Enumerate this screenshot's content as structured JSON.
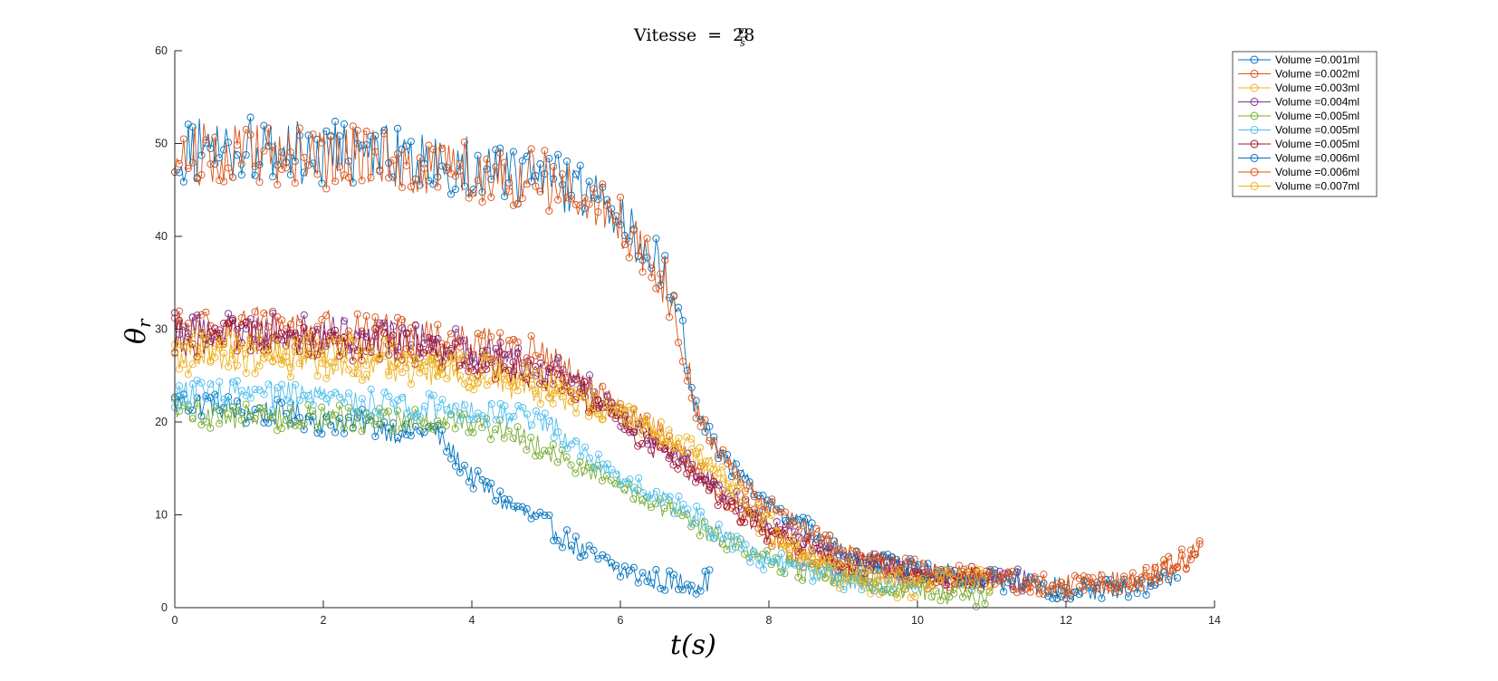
{
  "chart_data": {
    "type": "line",
    "marker": "circle",
    "title": "Vitesse = 28 m/s",
    "title_parts": {
      "lhs": "Vitesse",
      "equals": "=",
      "number": "28",
      "unit_num": "m",
      "unit_den": "s"
    },
    "xlabel": "t(s)",
    "ylabel": "θr",
    "ylabel_parts": {
      "symbol": "θ",
      "subscript": "r"
    },
    "xlim": [
      0,
      14
    ],
    "ylim": [
      0,
      60
    ],
    "xticks": [
      0,
      2,
      4,
      6,
      8,
      10,
      12,
      14
    ],
    "yticks": [
      0,
      10,
      20,
      30,
      40,
      50,
      60
    ],
    "grid": false,
    "legend_position": "top-right",
    "series": [
      {
        "name": "Volume =0.001ml",
        "color": "#0072BD",
        "x": [
          0,
          0.5,
          1,
          1.5,
          2,
          2.5,
          3,
          3.5,
          4,
          4.5,
          5,
          5.5,
          6,
          6.5,
          7,
          7.2
        ],
        "y": [
          22,
          22,
          21,
          21,
          20,
          20,
          19,
          19,
          14,
          11,
          9,
          6,
          4,
          3,
          2.5,
          3
        ]
      },
      {
        "name": "Volume =0.002ml",
        "color": "#D95319",
        "x": [
          0,
          1,
          2,
          3,
          4,
          5,
          5.5,
          6,
          6.5,
          6.8,
          7,
          7.5,
          8,
          8.5,
          9,
          10,
          11,
          12,
          13,
          13.8
        ],
        "y": [
          30,
          30.5,
          30,
          29.5,
          29,
          27,
          24,
          21,
          19,
          17,
          15,
          11,
          8,
          5,
          4,
          3,
          3,
          2,
          3,
          6
        ]
      },
      {
        "name": "Volume =0.003ml",
        "color": "#EDB120",
        "x": [
          0,
          1,
          2,
          3,
          4,
          5,
          6,
          6.5,
          7,
          7.5,
          8,
          8.5,
          9,
          9.5,
          10
        ],
        "y": [
          27,
          27,
          26.5,
          26,
          25,
          23.5,
          21,
          19,
          16,
          12,
          8,
          5,
          3,
          2,
          2
        ]
      },
      {
        "name": "Volume =0.004ml",
        "color": "#7E2F8E",
        "x": [
          0,
          1,
          2,
          3,
          4,
          5,
          5.5,
          6,
          7,
          8,
          9,
          10,
          11,
          11.5
        ],
        "y": [
          30,
          30,
          29.5,
          29,
          28,
          26,
          24,
          21,
          15,
          9,
          5,
          4,
          3,
          3
        ]
      },
      {
        "name": "Volume =0.005ml",
        "color": "#77AC30",
        "x": [
          0,
          1,
          2,
          3,
          4,
          4.5,
          5,
          5.5,
          6,
          6.5,
          7,
          7.5,
          8,
          9,
          10,
          11
        ],
        "y": [
          21,
          20.5,
          20.5,
          20,
          20,
          19,
          17,
          15,
          13,
          11,
          9,
          7,
          5,
          3,
          2,
          1
        ]
      },
      {
        "name": "Volume =0.005ml",
        "color": "#4DBEEE",
        "x": [
          0,
          1,
          2,
          3,
          4,
          5,
          5.5,
          6,
          6.5,
          7,
          7.5,
          8,
          9,
          10
        ],
        "y": [
          23,
          23,
          22.5,
          22,
          21.5,
          20,
          17,
          14,
          12,
          10,
          7,
          5,
          3,
          3
        ]
      },
      {
        "name": "Volume =0.005ml",
        "color": "#A2142F",
        "x": [
          0,
          1,
          2,
          3,
          4,
          5,
          5.5,
          6,
          7,
          8,
          9,
          10,
          11
        ],
        "y": [
          29,
          29,
          28.5,
          28,
          27,
          25,
          23,
          20,
          14,
          8,
          5,
          4,
          3
        ]
      },
      {
        "name": "Volume =0.006ml",
        "color": "#0072BD",
        "x": [
          0,
          0.5,
          1,
          1.5,
          2,
          2.5,
          3,
          3.5,
          4,
          4.5,
          5,
          5.5,
          6,
          6.3,
          6.6,
          6.8,
          7,
          7.3,
          7.5,
          8,
          9,
          10,
          11,
          12,
          13,
          13.5
        ],
        "y": [
          49,
          49.5,
          49.5,
          49,
          49,
          49,
          48.5,
          48,
          47.5,
          47,
          46,
          45,
          42,
          39,
          36,
          31,
          22,
          17,
          15,
          11,
          6,
          4,
          3,
          2,
          2,
          3
        ]
      },
      {
        "name": "Volume =0.006ml",
        "color": "#D95319",
        "x": [
          0,
          0.5,
          1,
          1.5,
          2,
          2.5,
          3,
          3.5,
          4,
          4.5,
          5,
          5.5,
          6,
          6.3,
          6.6,
          6.8,
          7,
          7.3,
          7.5,
          8,
          9,
          10,
          11,
          12,
          13,
          13.8
        ],
        "y": [
          48.5,
          49,
          49,
          48.5,
          48.5,
          48.5,
          48,
          47.5,
          47,
          46.5,
          46,
          44.5,
          41.5,
          38,
          35,
          30,
          22,
          17,
          15,
          11,
          6,
          4,
          3,
          2.5,
          3,
          6
        ]
      },
      {
        "name": "Volume =0.007ml",
        "color": "#EDB120",
        "x": [
          0,
          1,
          2,
          3,
          4,
          5,
          5.5,
          6,
          6.5,
          7,
          7.5,
          8,
          8.5,
          9,
          10,
          11
        ],
        "y": [
          28,
          28,
          27.5,
          27,
          26,
          24,
          22,
          21,
          19,
          17,
          13,
          9,
          6,
          4,
          3,
          3
        ]
      }
    ]
  }
}
